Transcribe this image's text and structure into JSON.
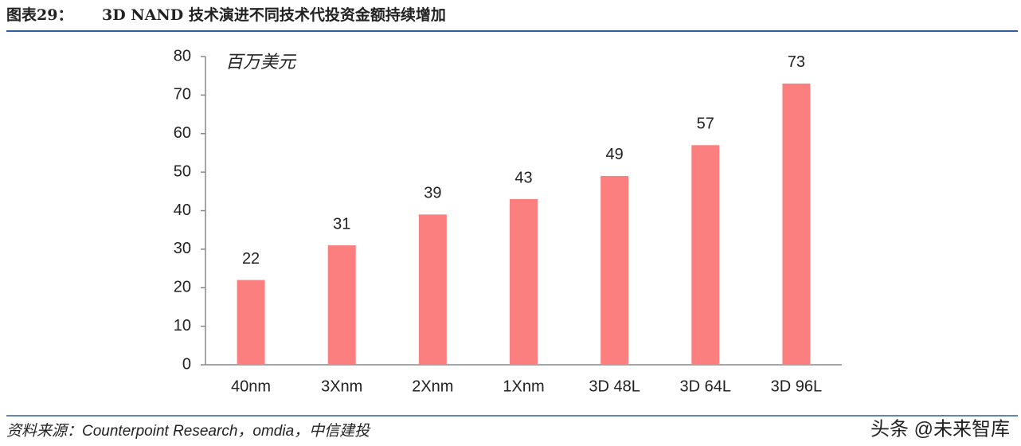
{
  "chart_data": {
    "type": "bar",
    "figure_label": "图表29：",
    "title": "3D NAND 技术演进不同技术代投资金额持续增加",
    "y_unit": "百万美元",
    "categories": [
      "40nm",
      "3Xnm",
      "2Xnm",
      "1Xnm",
      "3D 48L",
      "3D 64L",
      "3D 96L"
    ],
    "values": [
      22,
      31,
      39,
      43,
      49,
      57,
      73
    ],
    "color": "#fc7f7f",
    "ylim": [
      0,
      80
    ],
    "yticks": [
      0,
      10,
      20,
      30,
      40,
      50,
      60,
      70,
      80
    ],
    "grid": false,
    "source": "资料来源：Counterpoint Research，omdia，中信建投",
    "watermark": "头条 @未来智库"
  }
}
